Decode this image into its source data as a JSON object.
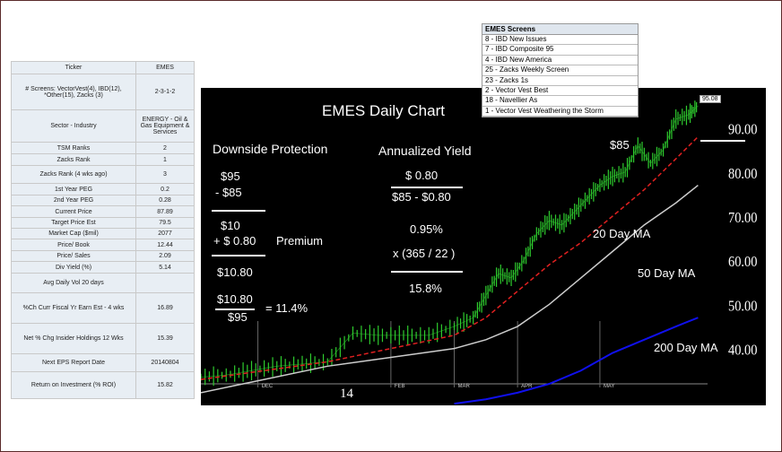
{
  "table": {
    "rows": [
      {
        "label": "Ticker",
        "value": "EMES"
      },
      {
        "label": "# Screens:  VectorVest(4),  IBD(12), *Other(15),  Zacks (3)",
        "value": "2-3-1-2"
      },
      {
        "label": "Sector - Industry",
        "value": "ENERGY - Oil & Gas Equipment & Services"
      },
      {
        "label": "TSM Ranks",
        "value": "2"
      },
      {
        "label": "Zacks Rank",
        "value": "1"
      },
      {
        "label": "Zacks Rank (4 wks ago)",
        "value": "3"
      },
      {
        "label": "1st Year PEG",
        "value": "0.2"
      },
      {
        "label": "2nd Year PEG",
        "value": "0.28"
      },
      {
        "label": "Current Price",
        "value": "87.89"
      },
      {
        "label": "Target Price Est",
        "value": "79.5"
      },
      {
        "label": "Market Cap ($mil)",
        "value": "2077"
      },
      {
        "label": "Price/ Book",
        "value": "12.44"
      },
      {
        "label": "Price/ Sales",
        "value": "2.09"
      },
      {
        "label": "Div Yield (%)",
        "value": "5.14"
      },
      {
        "label": "Avg Daily Vol 20 days",
        "value": ""
      },
      {
        "label": "%Ch Curr Fiscal Yr Earn Est - 4 wks",
        "value": "16.89"
      },
      {
        "label": "Net % Chg Insider Holdings 12 Wks",
        "value": "15.39"
      },
      {
        "label": "Next EPS Report Date",
        "value": "20140804"
      },
      {
        "label": "Return on Investment       (% ROI)",
        "value": "15.82"
      }
    ]
  },
  "screens": {
    "title": "EMES Screens",
    "items": [
      "8 - IBD New Issues",
      "7 - IBD Composite 95",
      "4 - IBD New America",
      "25 - Zacks Weekly Screen",
      "23 - Zacks 1s",
      "2 - Vector Vest Best",
      "18 - Navellier As",
      "1 - Vector Vest Weathering the Storm"
    ]
  },
  "annotations": {
    "downside_title": "Downside Protection",
    "d1": "$95",
    "d2": "- $85",
    "d3": "$10",
    "d4": "+ $  0.80",
    "premium": "Premium",
    "d5": "$10.80",
    "f_num": "$10.80",
    "f_den": "$95",
    "f_res": "= 11.4%",
    "yield_title": "Annualized Yield",
    "y1": "$ 0.80",
    "y2": "$85 - $0.80",
    "y3": "0.95%",
    "y4": "x (365 / 22 )",
    "y5": "15.8%",
    "strike": "$85",
    "ma20": "20 Day MA",
    "ma50": "50 Day MA",
    "ma200": "200 Day MA",
    "year_mark": "14"
  },
  "chart_data": {
    "type": "line",
    "title": "EMES Daily Chart",
    "price_label": "95.08",
    "x_ticks": [
      "DEC",
      "FEB",
      "MAR",
      "APR",
      "MAY"
    ],
    "y_ticks": [
      40,
      50,
      60,
      70,
      80,
      90
    ],
    "y_tick_labels": [
      "40.00",
      "50.00",
      "60.00",
      "70.00",
      "80.00",
      "90.00"
    ],
    "ylim": [
      32,
      95
    ],
    "xlim": [
      0,
      160
    ],
    "x_tick_positions": [
      18,
      60,
      80,
      100,
      126
    ],
    "series": [
      {
        "name": "Price",
        "color": "#2ecc2e",
        "x": [
          0,
          8,
          16,
          24,
          32,
          40,
          48,
          56,
          64,
          72,
          80,
          86,
          90,
          94,
          98,
          102,
          106,
          110,
          114,
          118,
          122,
          126,
          130,
          134,
          138,
          142,
          146,
          150,
          154,
          157
        ],
        "y": [
          33.5,
          34,
          35,
          36,
          36.5,
          37,
          43.5,
          43,
          43,
          43,
          45,
          47,
          52,
          57,
          56,
          60,
          66,
          69,
          68,
          71,
          74,
          77,
          79,
          80,
          86,
          82,
          85,
          92,
          93,
          95
        ]
      },
      {
        "name": "20 Day MA",
        "color": "#e02020",
        "x": [
          0,
          20,
          40,
          60,
          80,
          90,
          100,
          110,
          120,
          130,
          140,
          150,
          157
        ],
        "y": [
          33,
          35,
          37,
          40,
          43,
          47,
          53,
          59,
          64,
          70,
          76,
          83,
          88
        ]
      },
      {
        "name": "50 Day MA",
        "color": "#cccccc",
        "x": [
          0,
          20,
          40,
          60,
          80,
          90,
          100,
          110,
          120,
          130,
          140,
          150,
          157
        ],
        "y": [
          30,
          33,
          36,
          38,
          40,
          42,
          45,
          50,
          56,
          62,
          68,
          73,
          77
        ]
      },
      {
        "name": "200 Day MA",
        "color": "#1010ee",
        "x": [
          80,
          90,
          100,
          110,
          120,
          130,
          140,
          150,
          157
        ],
        "y": [
          27.5,
          28.5,
          30,
          32,
          35,
          39,
          42,
          45,
          47
        ]
      }
    ]
  }
}
